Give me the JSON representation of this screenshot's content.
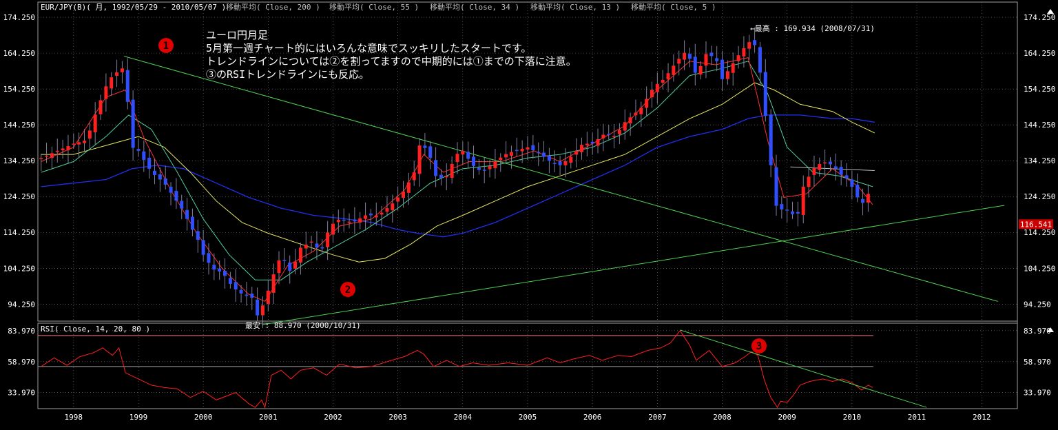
{
  "chart_data": [
    {
      "type": "candlestick",
      "title": "EUR/JPY(B)( 月, 1992/05/29 - 2010/05/07 )",
      "indicators": [
        "移動平均( Close, 200 )",
        "移動平均( Close, 55 )",
        "移動平均( Close, 34 )",
        "移動平均( Close, 13 )",
        "移動平均( Close, 5 )"
      ],
      "y_ticks": [
        "174.250",
        "164.250",
        "154.250",
        "144.250",
        "134.250",
        "124.250",
        "114.250",
        "104.250",
        "94.250"
      ],
      "ylim": [
        89.5,
        178.5
      ],
      "x_ticks": [
        "1998",
        "1999",
        "2000",
        "2001",
        "2002",
        "2003",
        "2004",
        "2005",
        "2006",
        "2007",
        "2008",
        "2009",
        "2010",
        "2011",
        "2012"
      ],
      "current_price_label": "116.541",
      "high_annotation": "←最高 : 169.934 (2008/07/31)",
      "low_annotation": "最安 : 88.970 (2000/10/31)",
      "annotations": {
        "note_lines": [
          "ユーロ円月足",
          "5月第一週チャート的にはいろんな意味でスッキリしたスタートです。",
          "トレンドラインについては②を割ってますので中期的には①までの下落に注意。",
          "③のRSIトレンドラインにも反応。"
        ],
        "markers": [
          "1",
          "2",
          "3"
        ]
      },
      "price_path": [
        [
          1997.5,
          135
        ],
        [
          1997.75,
          137
        ],
        [
          1998.0,
          139
        ],
        [
          1998.2,
          140
        ],
        [
          1998.35,
          148
        ],
        [
          1998.5,
          155
        ],
        [
          1998.6,
          158
        ],
        [
          1998.75,
          160
        ],
        [
          1998.8,
          157
        ],
        [
          1998.9,
          138
        ],
        [
          1999.0,
          137
        ],
        [
          1999.2,
          131
        ],
        [
          1999.4,
          128
        ],
        [
          1999.55,
          124
        ],
        [
          1999.7,
          120
        ],
        [
          1999.8,
          116
        ],
        [
          1999.9,
          113
        ],
        [
          2000.0,
          108
        ],
        [
          2000.15,
          104
        ],
        [
          2000.3,
          103
        ],
        [
          2000.45,
          99
        ],
        [
          2000.6,
          97
        ],
        [
          2000.75,
          96
        ],
        [
          2000.83,
          91
        ],
        [
          2000.95,
          95
        ],
        [
          2001.05,
          101
        ],
        [
          2001.2,
          108
        ],
        [
          2001.35,
          103
        ],
        [
          2001.5,
          110
        ],
        [
          2001.7,
          112
        ],
        [
          2001.8,
          108
        ],
        [
          2001.95,
          116
        ],
        [
          2002.1,
          118
        ],
        [
          2002.3,
          117
        ],
        [
          2002.5,
          119
        ],
        [
          2002.7,
          119
        ],
        [
          2002.9,
          122
        ],
        [
          2003.1,
          126
        ],
        [
          2003.25,
          131
        ],
        [
          2003.35,
          140
        ],
        [
          2003.5,
          135
        ],
        [
          2003.6,
          129
        ],
        [
          2003.75,
          130
        ],
        [
          2003.9,
          136
        ],
        [
          2004.0,
          137
        ],
        [
          2004.15,
          133
        ],
        [
          2004.3,
          131
        ],
        [
          2004.5,
          134
        ],
        [
          2004.65,
          136
        ],
        [
          2004.8,
          137
        ],
        [
          2005.0,
          138
        ],
        [
          2005.2,
          136
        ],
        [
          2005.35,
          134
        ],
        [
          2005.5,
          133
        ],
        [
          2005.65,
          135
        ],
        [
          2005.85,
          139
        ],
        [
          2006.0,
          139
        ],
        [
          2006.2,
          142
        ],
        [
          2006.35,
          141
        ],
        [
          2006.5,
          145
        ],
        [
          2006.75,
          149
        ],
        [
          2006.95,
          155
        ],
        [
          2007.1,
          157
        ],
        [
          2007.3,
          162
        ],
        [
          2007.45,
          165
        ],
        [
          2007.6,
          158
        ],
        [
          2007.75,
          164
        ],
        [
          2007.9,
          163
        ],
        [
          2008.0,
          157
        ],
        [
          2008.15,
          161
        ],
        [
          2008.3,
          165
        ],
        [
          2008.45,
          168
        ],
        [
          2008.55,
          165
        ],
        [
          2008.62,
          152
        ],
        [
          2008.7,
          143
        ],
        [
          2008.78,
          127
        ],
        [
          2008.85,
          120
        ],
        [
          2008.95,
          121
        ],
        [
          2009.05,
          120
        ],
        [
          2009.15,
          118
        ],
        [
          2009.25,
          127
        ],
        [
          2009.4,
          132
        ],
        [
          2009.55,
          134
        ],
        [
          2009.7,
          133
        ],
        [
          2009.85,
          130
        ],
        [
          2009.95,
          129
        ],
        [
          2010.05,
          125
        ],
        [
          2010.15,
          122
        ],
        [
          2010.25,
          125
        ],
        [
          2010.32,
          117
        ]
      ],
      "ma_5_path": [
        [
          1997.5,
          134
        ],
        [
          1998.0,
          138
        ],
        [
          1998.5,
          152
        ],
        [
          1998.8,
          154
        ],
        [
          1999.1,
          140
        ],
        [
          1999.5,
          126
        ],
        [
          1999.9,
          114
        ],
        [
          2000.3,
          104
        ],
        [
          2000.7,
          97
        ],
        [
          2000.95,
          95
        ],
        [
          2001.3,
          105
        ],
        [
          2001.7,
          109
        ],
        [
          2002.1,
          116
        ],
        [
          2002.6,
          118
        ],
        [
          2003.1,
          126
        ],
        [
          2003.4,
          136
        ],
        [
          2003.7,
          131
        ],
        [
          2004.1,
          134
        ],
        [
          2004.6,
          134
        ],
        [
          2005.1,
          137
        ],
        [
          2005.5,
          134
        ],
        [
          2006.0,
          139
        ],
        [
          2006.5,
          144
        ],
        [
          2007.0,
          154
        ],
        [
          2007.5,
          162
        ],
        [
          2007.9,
          161
        ],
        [
          2008.4,
          163
        ],
        [
          2008.7,
          140
        ],
        [
          2008.95,
          124
        ],
        [
          2009.3,
          125
        ],
        [
          2009.7,
          132
        ],
        [
          2010.1,
          127
        ],
        [
          2010.32,
          122
        ]
      ],
      "ma_13_path": [
        [
          1997.5,
          131
        ],
        [
          1998.0,
          134
        ],
        [
          1998.5,
          141
        ],
        [
          1998.85,
          147
        ],
        [
          1999.2,
          143
        ],
        [
          1999.6,
          131
        ],
        [
          2000.0,
          118
        ],
        [
          2000.4,
          108
        ],
        [
          2000.8,
          101
        ],
        [
          2001.2,
          101
        ],
        [
          2001.6,
          106
        ],
        [
          2002.0,
          110
        ],
        [
          2002.5,
          115
        ],
        [
          2003.0,
          121
        ],
        [
          2003.5,
          128
        ],
        [
          2004.0,
          132
        ],
        [
          2004.5,
          133
        ],
        [
          2005.0,
          135
        ],
        [
          2005.5,
          136
        ],
        [
          2006.0,
          138
        ],
        [
          2006.5,
          142
        ],
        [
          2007.0,
          149
        ],
        [
          2007.5,
          158
        ],
        [
          2008.0,
          160
        ],
        [
          2008.4,
          162
        ],
        [
          2008.7,
          153
        ],
        [
          2009.0,
          138
        ],
        [
          2009.4,
          131
        ],
        [
          2009.8,
          130
        ],
        [
          2010.32,
          127
        ]
      ],
      "ma_34_path": [
        [
          1997.5,
          136
        ],
        [
          1998.0,
          136
        ],
        [
          1998.6,
          139
        ],
        [
          1999.0,
          141
        ],
        [
          1999.4,
          138
        ],
        [
          1999.8,
          131
        ],
        [
          2000.2,
          123
        ],
        [
          2000.6,
          117
        ],
        [
          2001.0,
          114
        ],
        [
          2001.5,
          111
        ],
        [
          2002.0,
          108
        ],
        [
          2002.4,
          106
        ],
        [
          2002.8,
          107
        ],
        [
          2003.2,
          111
        ],
        [
          2003.6,
          116
        ],
        [
          2004.0,
          119
        ],
        [
          2004.5,
          123
        ],
        [
          2005.0,
          127
        ],
        [
          2005.5,
          130
        ],
        [
          2006.0,
          133
        ],
        [
          2006.5,
          136
        ],
        [
          2007.0,
          141
        ],
        [
          2007.5,
          146
        ],
        [
          2008.0,
          150
        ],
        [
          2008.5,
          156
        ],
        [
          2008.8,
          154
        ],
        [
          2009.2,
          150
        ],
        [
          2009.7,
          148
        ],
        [
          2010.0,
          145
        ],
        [
          2010.35,
          142
        ]
      ],
      "ma_55_path": [
        [
          1997.5,
          127
        ],
        [
          1998.0,
          128
        ],
        [
          1998.5,
          129
        ],
        [
          1998.9,
          132
        ],
        [
          1999.3,
          133
        ],
        [
          1999.7,
          132
        ],
        [
          2000.2,
          128
        ],
        [
          2000.7,
          124
        ],
        [
          2001.2,
          121
        ],
        [
          2001.7,
          119
        ],
        [
          2002.2,
          118
        ],
        [
          2002.6,
          117
        ],
        [
          2003.0,
          115
        ],
        [
          2003.3,
          114
        ],
        [
          2003.7,
          113
        ],
        [
          2004.0,
          114
        ],
        [
          2004.5,
          117
        ],
        [
          2005.0,
          121
        ],
        [
          2005.5,
          125
        ],
        [
          2006.0,
          129
        ],
        [
          2006.5,
          133
        ],
        [
          2007.0,
          138
        ],
        [
          2007.5,
          141
        ],
        [
          2008.0,
          143
        ],
        [
          2008.4,
          146
        ],
        [
          2008.7,
          147
        ],
        [
          2009.2,
          147
        ],
        [
          2009.7,
          146
        ],
        [
          2010.0,
          146
        ],
        [
          2010.35,
          145
        ]
      ],
      "ma_200_path": [
        [
          2009.05,
          132.5
        ],
        [
          2010.35,
          131.5
        ]
      ],
      "trendlines": {
        "line1": [
          [
            1998.78,
            163.4
          ],
          [
            2012.25,
            95.0
          ]
        ],
        "line2": [
          [
            2000.9,
            88.5
          ],
          [
            2012.35,
            121.8
          ]
        ]
      }
    },
    {
      "type": "line",
      "title": "RSI( Close, 14, 20, 80 )",
      "y_ticks": [
        "83.970",
        "58.970",
        "33.970"
      ],
      "ylim": [
        21,
        90
      ],
      "levels": [
        80,
        55
      ],
      "rsi_path": [
        [
          1997.5,
          55
        ],
        [
          1997.7,
          62
        ],
        [
          1997.9,
          56
        ],
        [
          1998.1,
          63
        ],
        [
          1998.3,
          66
        ],
        [
          1998.45,
          70
        ],
        [
          1998.6,
          64
        ],
        [
          1998.7,
          70
        ],
        [
          1998.8,
          50
        ],
        [
          1999.0,
          45
        ],
        [
          1999.2,
          40
        ],
        [
          1999.4,
          38
        ],
        [
          1999.6,
          37
        ],
        [
          1999.8,
          30
        ],
        [
          2000.0,
          35
        ],
        [
          2000.2,
          28
        ],
        [
          2000.5,
          34
        ],
        [
          2000.7,
          25
        ],
        [
          2000.8,
          22
        ],
        [
          2000.9,
          28
        ],
        [
          2000.95,
          22
        ],
        [
          2001.05,
          48
        ],
        [
          2001.2,
          52
        ],
        [
          2001.35,
          45
        ],
        [
          2001.5,
          52
        ],
        [
          2001.7,
          54
        ],
        [
          2001.9,
          48
        ],
        [
          2002.1,
          57
        ],
        [
          2002.35,
          54
        ],
        [
          2002.6,
          55
        ],
        [
          2002.9,
          60
        ],
        [
          2003.1,
          63
        ],
        [
          2003.3,
          68
        ],
        [
          2003.4,
          65
        ],
        [
          2003.55,
          55
        ],
        [
          2003.75,
          60
        ],
        [
          2003.95,
          55
        ],
        [
          2004.15,
          58
        ],
        [
          2004.4,
          56
        ],
        [
          2004.7,
          58
        ],
        [
          2005.0,
          56
        ],
        [
          2005.3,
          62
        ],
        [
          2005.5,
          58
        ],
        [
          2005.7,
          61
        ],
        [
          2005.95,
          64
        ],
        [
          2006.15,
          60
        ],
        [
          2006.4,
          64
        ],
        [
          2006.6,
          63
        ],
        [
          2006.85,
          68
        ],
        [
          2007.05,
          70
        ],
        [
          2007.2,
          74
        ],
        [
          2007.35,
          84
        ],
        [
          2007.5,
          72
        ],
        [
          2007.6,
          60
        ],
        [
          2007.8,
          68
        ],
        [
          2008.0,
          55
        ],
        [
          2008.2,
          58
        ],
        [
          2008.35,
          63
        ],
        [
          2008.45,
          67
        ],
        [
          2008.55,
          64
        ],
        [
          2008.65,
          44
        ],
        [
          2008.75,
          30
        ],
        [
          2008.85,
          22
        ],
        [
          2008.9,
          27
        ],
        [
          2009.0,
          26
        ],
        [
          2009.1,
          32
        ],
        [
          2009.2,
          40
        ],
        [
          2009.35,
          43
        ],
        [
          2009.55,
          45
        ],
        [
          2009.7,
          43
        ],
        [
          2009.85,
          45
        ],
        [
          2010.0,
          42
        ],
        [
          2010.15,
          36
        ],
        [
          2010.25,
          40
        ],
        [
          2010.32,
          38
        ]
      ],
      "trendline": [
        [
          2007.35,
          84.5
        ],
        [
          2011.15,
          22
        ]
      ]
    }
  ],
  "colors": {
    "background": "#000000",
    "grid": "#808080",
    "bull_candle": "#ff2020",
    "bear_candle": "#3050ff",
    "ma_5": "#ff3030",
    "ma_13": "#50d0a0",
    "ma_34": "#e8e860",
    "ma_55": "#2030f0",
    "ma_200": "#c0c0c0",
    "trendline": "#50d050",
    "rsi_line": "#ff2020",
    "rsi_upper": "#ff8080",
    "rsi_mid": "#a0a0a0",
    "price_badge": "#cc0000",
    "marker": "#e00000"
  }
}
